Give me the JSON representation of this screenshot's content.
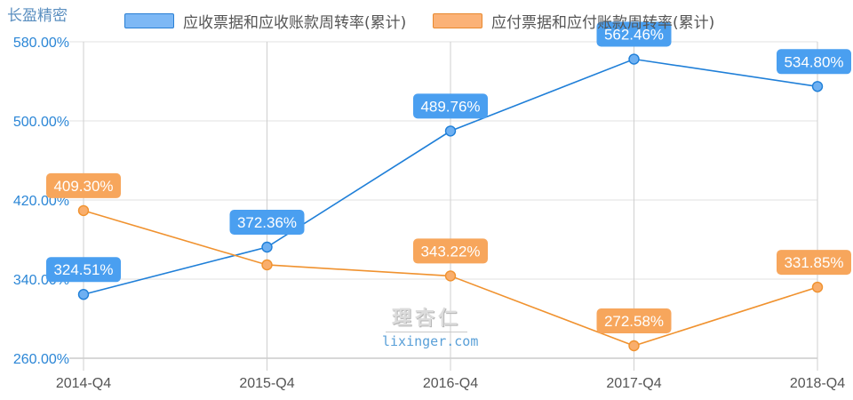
{
  "brand": "长盈精密",
  "legend": [
    {
      "label": "应收票据和应收账款周转率(累计)",
      "color": "#4a9ff0",
      "border": "#2a7fd4"
    },
    {
      "label": "应付票据和应付账款周转率(累计)",
      "color": "#f7a65c",
      "border": "#e8892f"
    }
  ],
  "watermark": {
    "cn": "理杏仁",
    "en": "lixinger.com"
  },
  "chart_data": {
    "type": "line",
    "title": "长盈精密",
    "xlabel": "",
    "ylabel": "",
    "categories": [
      "2014-Q4",
      "2015-Q4",
      "2016-Q4",
      "2017-Q4",
      "2018-Q4"
    ],
    "ylim": [
      260,
      580
    ],
    "yticks": [
      "260.00%",
      "340.00%",
      "420.00%",
      "500.00%",
      "580.00%"
    ],
    "grid": true,
    "legend_position": "top",
    "series": [
      {
        "name": "应收票据和应收账款周转率(累计)",
        "color": "#1f7fd8",
        "values": [
          324.51,
          372.36,
          489.76,
          562.46,
          534.8
        ],
        "labels": [
          "324.51%",
          "372.36%",
          "489.76%",
          "562.46%",
          "534.80%"
        ]
      },
      {
        "name": "应付票据和应付账款周转率(累计)",
        "color": "#f0922f",
        "values": [
          409.3,
          354.4,
          343.22,
          272.58,
          331.85
        ],
        "labels": [
          "409.30%",
          "",
          "343.22%",
          "272.58%",
          "331.85%"
        ]
      }
    ]
  }
}
